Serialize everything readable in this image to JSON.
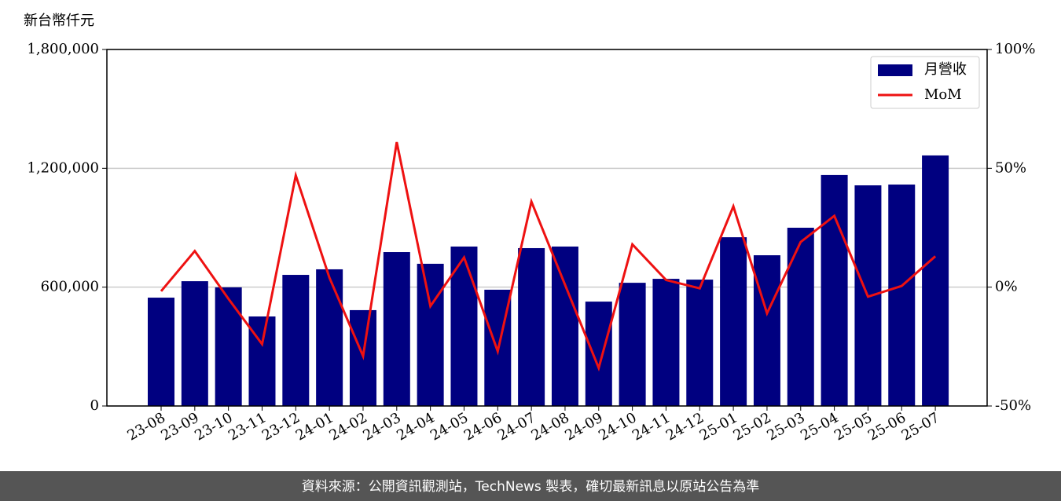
{
  "chart_data": {
    "type": "bar-line",
    "y_label": "新台幣仟元",
    "categories": [
      "23-08",
      "23-09",
      "23-10",
      "23-11",
      "23-12",
      "24-01",
      "24-02",
      "24-03",
      "24-04",
      "24-05",
      "24-06",
      "24-07",
      "24-08",
      "24-09",
      "24-10",
      "24-11",
      "24-12",
      "25-01",
      "25-02",
      "25-03",
      "25-04",
      "25-05",
      "25-06",
      "25-07"
    ],
    "series": [
      {
        "name": "月營收",
        "type": "bar",
        "color": "#000080",
        "values": [
          547000,
          630000,
          599000,
          452000,
          662000,
          690000,
          484000,
          777000,
          718000,
          805000,
          587000,
          797000,
          805000,
          527000,
          622000,
          642000,
          638000,
          852000,
          761000,
          900000,
          1166000,
          1114000,
          1118000,
          1265000
        ]
      },
      {
        "name": "MoM",
        "type": "line",
        "color": "#ee1111",
        "axis": "y2",
        "values": [
          -1.7,
          15.2,
          -4.9,
          -24,
          47,
          4,
          -29,
          61,
          -8,
          12.5,
          -27,
          36,
          1,
          -34,
          18,
          3,
          -0.5,
          34,
          -11,
          19,
          30,
          -4,
          0.5,
          13
        ]
      }
    ],
    "ylim": [
      0,
      1800000
    ],
    "yticks": [
      {
        "value": 0,
        "label": "0"
      },
      {
        "value": 600000,
        "label": "600,000"
      },
      {
        "value": 1200000,
        "label": "1,200,000"
      },
      {
        "value": 1800000,
        "label": "1,800,000"
      }
    ],
    "y2lim": [
      -50,
      100
    ],
    "y2ticks": [
      {
        "value": -50,
        "label": "-50%"
      },
      {
        "value": 0,
        "label": "0%"
      },
      {
        "value": 50,
        "label": "50%"
      },
      {
        "value": 100,
        "label": "100%"
      }
    ],
    "grid": true,
    "legend": "upper right",
    "source": "資料來源：公開資訊觀測站，TechNews 製表，確切最新訊息以原站公告為準"
  }
}
